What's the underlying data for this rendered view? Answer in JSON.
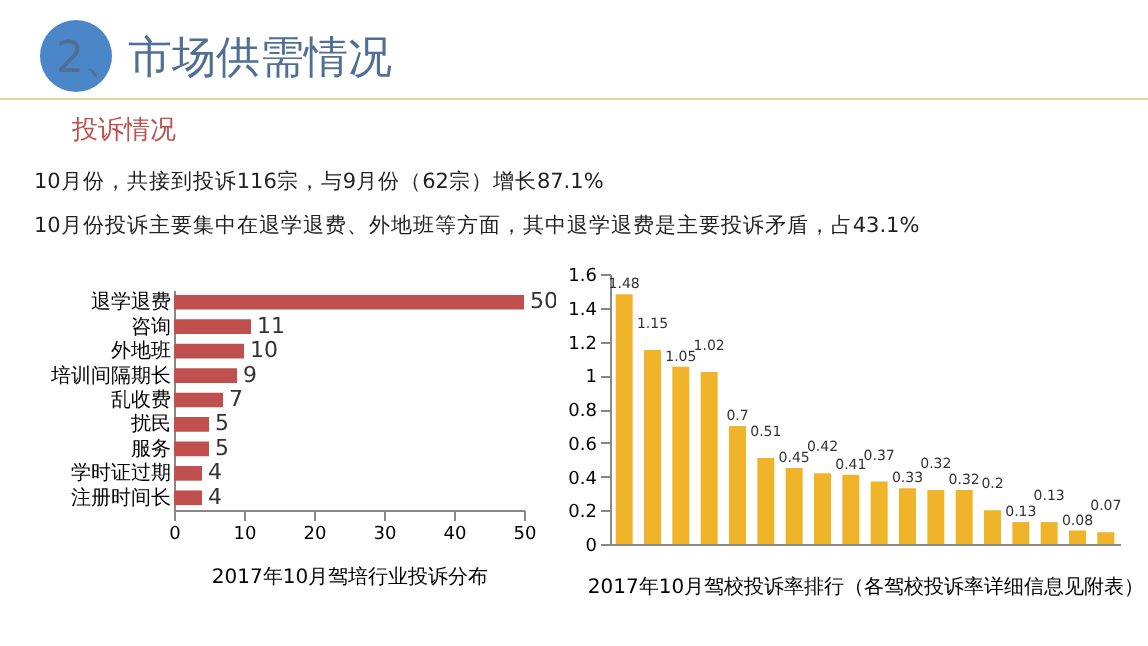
{
  "chart_data": [
    {
      "type": "bar",
      "title": "2、市场供需情况",
      "subtitle": "投诉情况",
      "annotations": [
        "10月份，共接到投诉116宗，与9月份（62宗）增长87.1%",
        "10月份投诉主要集中在退学退费、外地班等方面，其中退学退费是主要投诉矛盾，占43.1%"
      ],
      "orientation": "horizontal",
      "xlabel": "2017年10月驾培行业投诉分布",
      "categories": [
        "退学退费",
        "咨询",
        "外地班",
        "培训间隔期长",
        "乱收费",
        "扰民",
        "服务",
        "学时证过期",
        "注册时间长"
      ],
      "values": [
        50,
        11,
        10,
        9,
        7,
        5,
        5,
        4,
        4
      ],
      "color": "#c0504d",
      "xlim": [
        0,
        50
      ],
      "xticks": [
        0,
        10,
        20,
        30,
        40,
        50
      ],
      "data_labels": true
    },
    {
      "type": "bar",
      "xlabel": "2017年10月驾校投诉率排行（各驾校投诉率详细信息见附表）",
      "categories": [
        null,
        null,
        null,
        null,
        null,
        null,
        null,
        null,
        null,
        null,
        null,
        null,
        null,
        null,
        null,
        null,
        null,
        null
      ],
      "values": [
        1.48,
        1.15,
        1.05,
        1.02,
        0.7,
        0.51,
        0.45,
        0.42,
        0.41,
        0.37,
        0.33,
        0.32,
        0.32,
        0.2,
        0.13,
        0.13,
        0.08,
        0.07
      ],
      "color": "#f0b42a",
      "ylim": [
        0,
        1.6
      ],
      "yticks": [
        0,
        0.2,
        0.4,
        0.6,
        0.8,
        1,
        1.2,
        1.4,
        1.6
      ],
      "data_labels": true
    }
  ]
}
